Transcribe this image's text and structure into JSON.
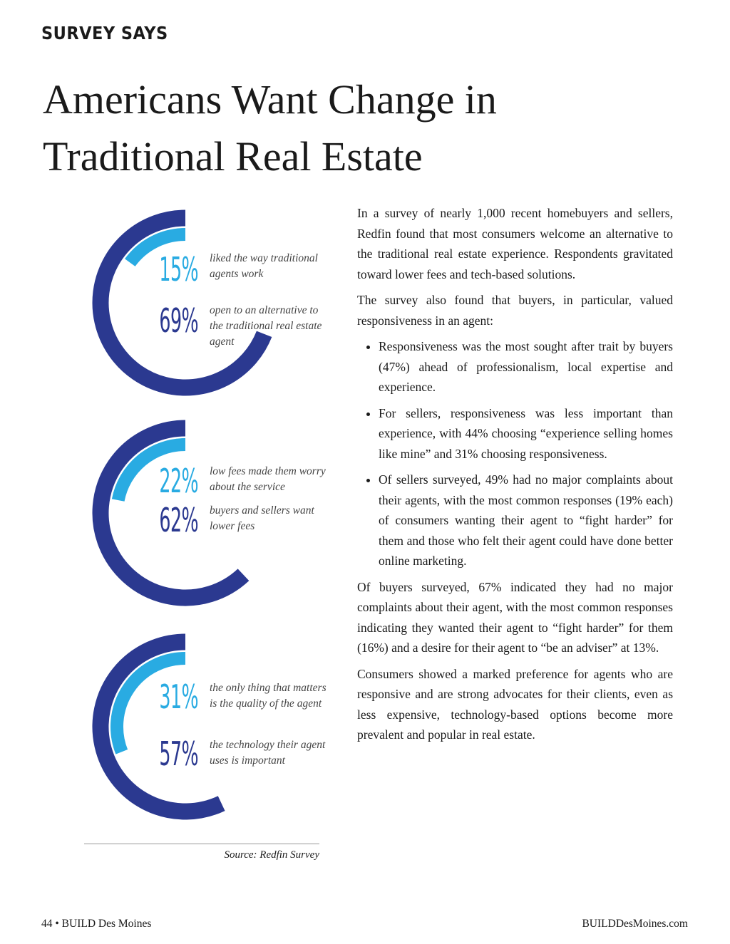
{
  "header": {
    "section": "SURVEY SAYS",
    "title_lines": [
      "Americans Want Change in",
      "Traditional Real Estate"
    ]
  },
  "rings": [
    {
      "stats": [
        {
          "value": 15,
          "label": "15%",
          "text": "liked the way traditional agents work"
        },
        {
          "value": 69,
          "label": "69%",
          "text": "open to an alternative to the traditional real estate agent"
        }
      ]
    },
    {
      "stats": [
        {
          "value": 22,
          "label": "22%",
          "text": "low fees made them worry about the service"
        },
        {
          "value": 62,
          "label": "62%",
          "text": "buyers and sellers want lower fees"
        }
      ]
    },
    {
      "stats": [
        {
          "value": 31,
          "label": "31%",
          "text": "the only thing that matters is the quality of the agent"
        },
        {
          "value": 57,
          "label": "57%",
          "text": "the technology their agent uses is important"
        }
      ]
    }
  ],
  "source": "Source: Redfin Survey",
  "body": {
    "paragraphs_before": [
      "In a survey of nearly 1,000 recent homebuyers and sellers, Redfin found that most consumers welcome an alternative to the traditional real estate experience. Respondents gravitated toward lower fees and tech-based solutions.",
      "The survey also found that buyers, in particular, valued responsiveness in an agent:"
    ],
    "bullets": [
      "Responsiveness was the most sought after trait by buyers (47%) ahead of professionalism, local expertise and experience.",
      "For sellers, responsiveness was less important than experience, with 44% choosing “experience selling homes like mine” and 31% choosing responsiveness.",
      "Of sellers surveyed, 49% had no major complaints about their agents, with the most common responses (19% each) of consumers wanting their agent to “fight harder” for them and those who felt their agent could have done better online marketing."
    ],
    "paragraphs_after": [
      "Of buyers surveyed, 67% indicated they had no major complaints about their agent, with the most common responses indicating they wanted their agent to “fight harder” for them (16%) and a desire for their agent to “be an adviser” at 13%.",
      "Consumers showed a marked preference for agents who are responsive and are strong advocates for their clients, even as less expensive, technology-based options become more prevalent and popular in real estate."
    ]
  },
  "footer": {
    "left": "44 • BUILD Des Moines",
    "right": "BUILDDesMoines.com"
  }
}
